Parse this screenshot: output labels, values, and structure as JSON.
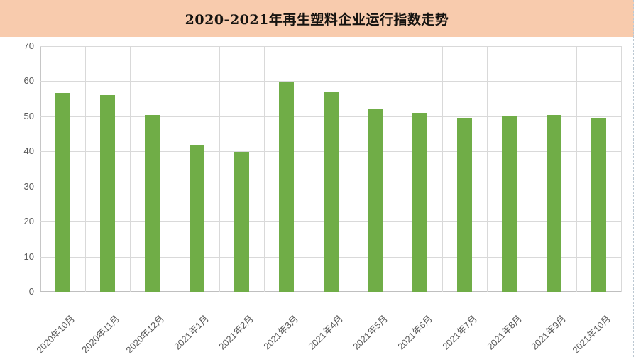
{
  "header": {
    "title": "2020-2021年再生塑料企业运行指数走势"
  },
  "chart_data": {
    "type": "bar",
    "title": "2020-2021年再生塑料企业运行指数走势",
    "categories": [
      "2020年10月",
      "2020年11月",
      "2020年12月",
      "2021年1月",
      "2021年2月",
      "2021年3月",
      "2021年4月",
      "2021年5月",
      "2021年6月",
      "2021年7月",
      "2021年8月",
      "2021年9月",
      "2021年10月"
    ],
    "values": [
      56.6,
      56.0,
      50.4,
      41.9,
      39.8,
      59.9,
      57.0,
      52.3,
      51.0,
      49.5,
      50.2,
      50.4,
      49.5
    ],
    "xlabel": "",
    "ylabel": "",
    "ylim": [
      0,
      70
    ],
    "ytick_step": 10,
    "yticks": [
      "0",
      "10",
      "20",
      "30",
      "40",
      "50",
      "60",
      "70"
    ],
    "grid": true,
    "legend": "none",
    "bar_color": "#70ad47"
  },
  "colors": {
    "header_bg": "#f8cbad",
    "title_text": "#151310",
    "bar": "#70ad47",
    "gridline": "#d9d9d9",
    "axis_line": "#bfbfbf",
    "axis_label": "#595959",
    "sheet_gridline": "#bcc8d2"
  }
}
